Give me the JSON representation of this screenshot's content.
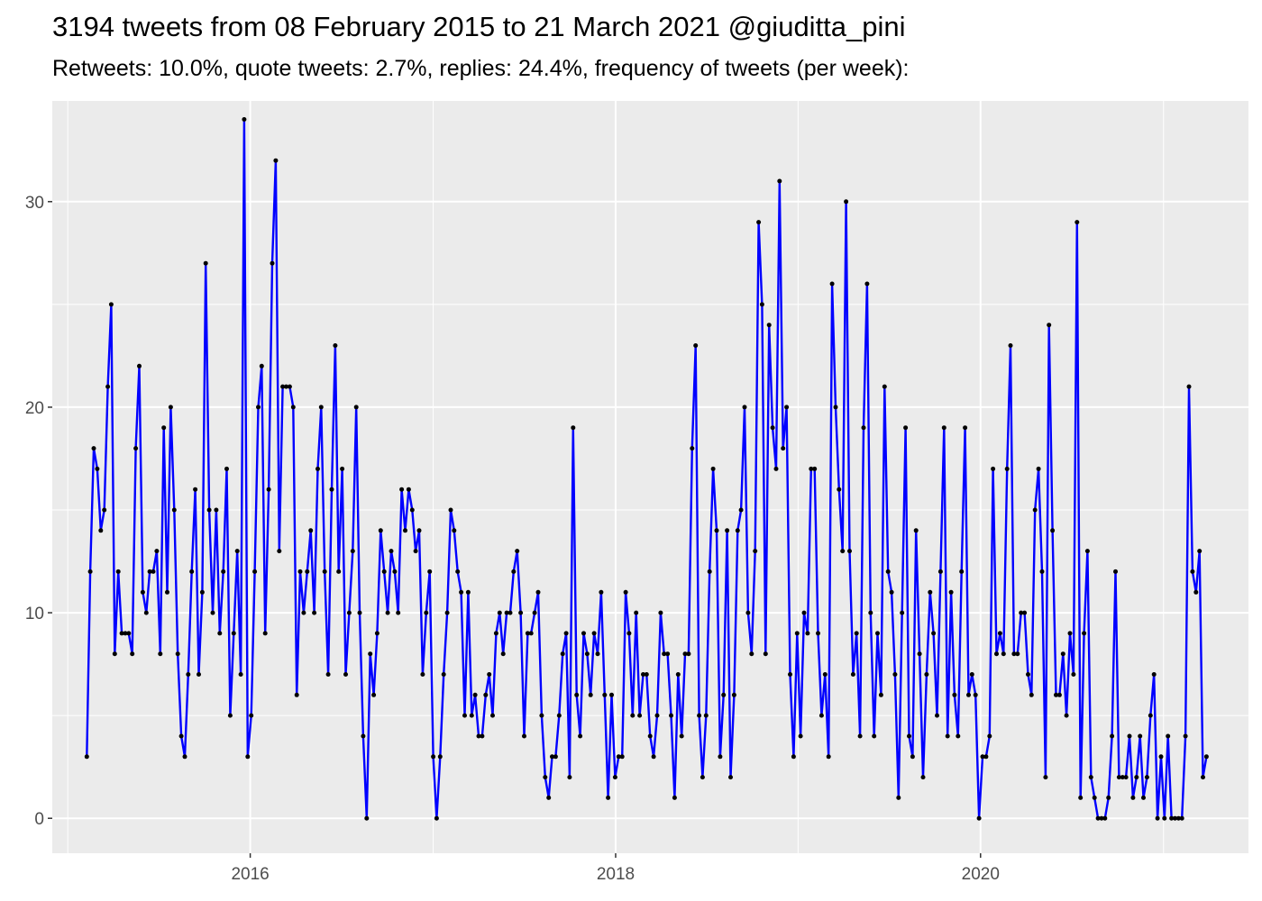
{
  "title": "3194 tweets from 08 February 2015 to 21 March 2021 @giuditta_pini",
  "subtitle": "Retweets: 10.0%, quote tweets: 2.7%, replies: 24.4%, frequency of tweets (per week):",
  "colors": {
    "panel": "#ebebeb",
    "grid_major": "#ffffff",
    "line": "#0000ff",
    "point": "#000000",
    "tick_text": "#4d4d4d"
  },
  "chart_data": {
    "type": "line",
    "title": "3194 tweets from 08 February 2015 to 21 March 2021 @giuditta_pini",
    "subtitle": "Retweets: 10.0%, quote tweets: 2.7%, replies: 24.4%, frequency of tweets (per week):",
    "xlabel": "",
    "ylabel": "",
    "x_scale": "time (weekly)",
    "x_start": "2015-02-08",
    "x_end": "2021-03-21",
    "xlim": [
      "2014-12-01",
      "2021-06-20"
    ],
    "ylim": [
      -1.7,
      34.9
    ],
    "x_ticks": [
      "2016",
      "2018",
      "2020"
    ],
    "y_ticks": [
      0,
      10,
      20,
      30
    ],
    "grid": true,
    "legend": "none",
    "series": [
      {
        "values": [
          3,
          12,
          18,
          17,
          14,
          15,
          21,
          25,
          8,
          12,
          9,
          9,
          9,
          8,
          18,
          22,
          11,
          10,
          12,
          12,
          13,
          8,
          19,
          11,
          20,
          15,
          8,
          4,
          3,
          7,
          12,
          16,
          7,
          11,
          27,
          15,
          10,
          15,
          9,
          12,
          17,
          5,
          9,
          13,
          7,
          34,
          3,
          5,
          12,
          20,
          22,
          9,
          16,
          27,
          32,
          13,
          21,
          21,
          21,
          20,
          6,
          12,
          10,
          12,
          14,
          10,
          17,
          20,
          12,
          7,
          16,
          23,
          12,
          17,
          7,
          10,
          13,
          20,
          10,
          4,
          0,
          8,
          6,
          9,
          14,
          12,
          10,
          13,
          12,
          10,
          16,
          14,
          16,
          15,
          13,
          14,
          7,
          10,
          12,
          3,
          0,
          3,
          7,
          10,
          15,
          14,
          12,
          11,
          5,
          11,
          5,
          6,
          4,
          4,
          6,
          7,
          5,
          9,
          10,
          8,
          10,
          10,
          12,
          13,
          10,
          4,
          9,
          9,
          10,
          11,
          5,
          2,
          1,
          3,
          3,
          5,
          8,
          9,
          2,
          19,
          6,
          4,
          9,
          8,
          6,
          9,
          8,
          11,
          6,
          1,
          6,
          2,
          3,
          3,
          11,
          9,
          5,
          10,
          5,
          7,
          7,
          4,
          3,
          5,
          10,
          8,
          8,
          5,
          1,
          7,
          4,
          8,
          8,
          18,
          23,
          5,
          2,
          5,
          12,
          17,
          14,
          3,
          6,
          14,
          2,
          6,
          14,
          15,
          20,
          10,
          8,
          13,
          29,
          25,
          8,
          24,
          19,
          17,
          31,
          18,
          20,
          7,
          3,
          9,
          4,
          10,
          9,
          17,
          17,
          9,
          5,
          7,
          3,
          26,
          20,
          16,
          13,
          30,
          13,
          7,
          9,
          4,
          19,
          26,
          10,
          4,
          9,
          6,
          21,
          12,
          11,
          7,
          1,
          10,
          19,
          4,
          3,
          14,
          8,
          2,
          7,
          11,
          9,
          5,
          12,
          19,
          4,
          11,
          6,
          4,
          12,
          19,
          6,
          7,
          6,
          0,
          3,
          3,
          4,
          17,
          8,
          9,
          8,
          17,
          23,
          8,
          8,
          10,
          10,
          7,
          6,
          15,
          17,
          12,
          2,
          24,
          14,
          6,
          6,
          8,
          5,
          9,
          7,
          29,
          1,
          9,
          13,
          2,
          1,
          0,
          0,
          0,
          1,
          4,
          12,
          2,
          2,
          2,
          4,
          1,
          2,
          4,
          1,
          2,
          5,
          7,
          0,
          3,
          0,
          4,
          0,
          0,
          0,
          0,
          4,
          21,
          12,
          11,
          13,
          2,
          3
        ]
      }
    ]
  }
}
